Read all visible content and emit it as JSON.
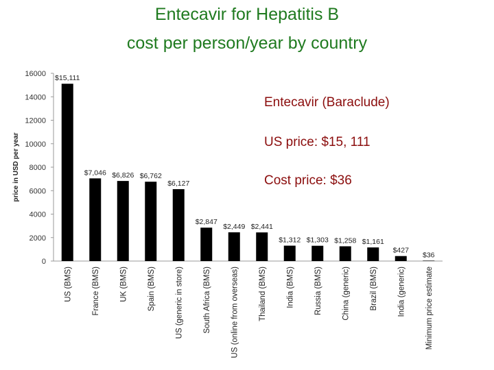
{
  "chart_data": {
    "type": "bar",
    "title": "Entecavir for Hepatitis B",
    "subtitle": "cost per person/year by country",
    "xlabel": "",
    "ylabel": "price in USD per year",
    "ylim": [
      0,
      16000
    ],
    "yticks": [
      0,
      2000,
      4000,
      6000,
      8000,
      10000,
      12000,
      14000,
      16000
    ],
    "grid": false,
    "legend": "none",
    "bar_color": "#000000",
    "categories": [
      "US (BMS)",
      "France (BMS)",
      "UK (BMS)",
      "Spain (BMS)",
      "US (generic in store)",
      "South Africa (BMS)",
      "US (online from overseas)",
      "Thailand (BMS)",
      "India (BMS)",
      "Russia (BMS)",
      "China (generic)",
      "Brazil (BMS)",
      "India (generic)",
      "Minimum price estimate"
    ],
    "values": [
      15111,
      7046,
      6826,
      6762,
      6127,
      2847,
      2449,
      2441,
      1312,
      1303,
      1258,
      1161,
      427,
      36
    ],
    "data_labels": [
      "$15,111",
      "$7,046",
      "$6,826",
      "$6,762",
      "$6,127",
      "$2,847",
      "$2,449",
      "$2,441",
      "$1,312",
      "$1,303",
      "$1,258",
      "$1,161",
      "$427",
      "$36"
    ],
    "annotations": [
      "Entecavir (Baraclude)",
      "US price: $15, 111",
      "Cost price: $36"
    ]
  },
  "colors": {
    "title": "#1f7a1f",
    "annotation": "#8b0d0d",
    "bars": "#000000"
  }
}
